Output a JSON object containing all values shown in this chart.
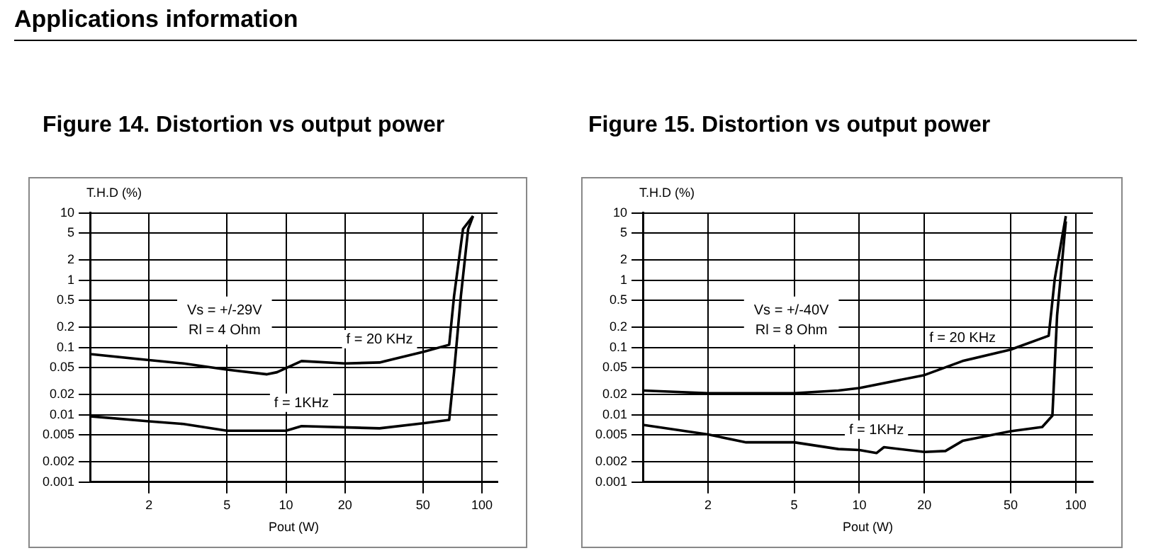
{
  "chart_data": [
    {
      "type": "other",
      "title": "Applications information"
    },
    {
      "type": "line",
      "title": "Figure 14.   Distortion vs output power",
      "xlabel": "Pout (W)",
      "ylabel": "T.H.D (%)",
      "log": "xy",
      "grid": true,
      "xlim": [
        1,
        120
      ],
      "ylim": [
        0.001,
        10
      ],
      "xticks": [
        2,
        5,
        10,
        20,
        50,
        100
      ],
      "yticks": [
        0.001,
        0.002,
        0.005,
        0.01,
        0.02,
        0.05,
        0.1,
        0.2,
        0.5,
        1,
        2,
        5,
        10
      ],
      "series": [
        {
          "name": "f = 20 KHz",
          "color": "#000000",
          "x": [
            1,
            2,
            3,
            5,
            8,
            9,
            12,
            20,
            30,
            50,
            68,
            72,
            80,
            90
          ],
          "values": [
            0.08,
            0.065,
            0.058,
            0.047,
            0.04,
            0.043,
            0.063,
            0.058,
            0.06,
            0.086,
            0.11,
            0.58,
            5.8,
            9
          ]
        },
        {
          "name": "f = 1KHz",
          "color": "#000000",
          "x": [
            1,
            2,
            3,
            5,
            10,
            12,
            30,
            50,
            68,
            72,
            78,
            85,
            90
          ],
          "values": [
            0.0095,
            0.008,
            0.0073,
            0.0058,
            0.0058,
            0.0068,
            0.0063,
            0.0075,
            0.0084,
            0.043,
            0.58,
            5.8,
            9
          ]
        }
      ],
      "annotations": [
        "Vs = +/-29V",
        "Rl = 4 Ohm"
      ]
    },
    {
      "type": "line",
      "title": "Figure 15.   Distortion vs output power",
      "xlabel": "Pout (W)",
      "ylabel": "T.H.D (%)",
      "log": "xy",
      "grid": true,
      "xlim": [
        1,
        120
      ],
      "ylim": [
        0.001,
        10
      ],
      "xticks": [
        2,
        5,
        10,
        20,
        50,
        100
      ],
      "yticks": [
        0.001,
        0.002,
        0.005,
        0.01,
        0.02,
        0.05,
        0.1,
        0.2,
        0.5,
        1,
        2,
        5,
        10
      ],
      "series": [
        {
          "name": "f = 20 KHz",
          "color": "#000000",
          "x": [
            1,
            2,
            5,
            8,
            10,
            20,
            30,
            50,
            75,
            80,
            90
          ],
          "values": [
            0.023,
            0.021,
            0.021,
            0.023,
            0.025,
            0.039,
            0.063,
            0.093,
            0.15,
            1.05,
            9
          ]
        },
        {
          "name": "f = 1KHz",
          "color": "#000000",
          "x": [
            1,
            2,
            3,
            5,
            8,
            10,
            12,
            13,
            20,
            25,
            30,
            50,
            70,
            78,
            82,
            90
          ],
          "values": [
            0.0071,
            0.0051,
            0.0039,
            0.0039,
            0.0031,
            0.003,
            0.0027,
            0.0033,
            0.0028,
            0.0029,
            0.0041,
            0.0057,
            0.0066,
            0.0097,
            0.3,
            7.5
          ]
        }
      ],
      "annotations": [
        "Vs = +/-40V",
        "Rl = 8 Ohm"
      ]
    }
  ]
}
